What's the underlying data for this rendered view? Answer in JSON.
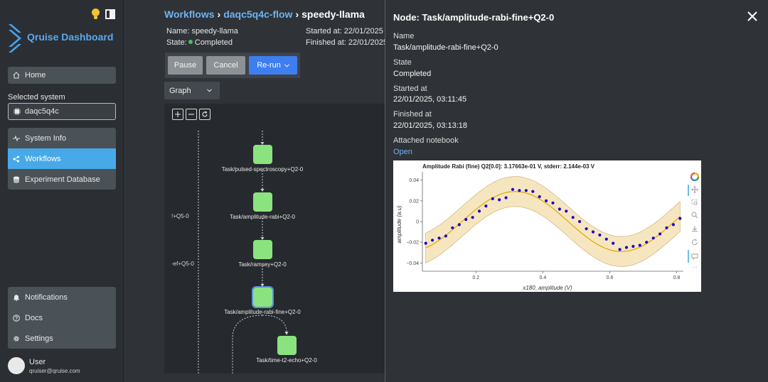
{
  "sidebar": {
    "logo_text": "Qruise Dashboard",
    "home_label": "Home",
    "selected_system_label": "Selected system",
    "selected_system_value": "daqc5q4c",
    "nav": [
      {
        "label": "System Info",
        "icon": "pulse-icon"
      },
      {
        "label": "Workflows",
        "icon": "share-nodes-icon",
        "active": true
      },
      {
        "label": "Experiment Database",
        "icon": "database-icon"
      }
    ],
    "bottom_nav": [
      {
        "label": "Notifications",
        "icon": "bell-icon"
      },
      {
        "label": "Docs",
        "icon": "help-icon"
      },
      {
        "label": "Settings",
        "icon": "gear-icon"
      }
    ],
    "user_name": "User",
    "user_email": "qruiser@qruise.com"
  },
  "main": {
    "breadcrumbs": {
      "root": "Workflows",
      "flow": "daqc5q4c-flow",
      "current": "speedy-llama"
    },
    "name_line": "Name: speedy-llama",
    "state_prefix": "State:",
    "state_value": "Completed",
    "started_line": "Started at: 22/01/2025",
    "finished_line": "Finished at: 22/01/2025",
    "pause_label": "Pause",
    "cancel_label": "Cancel",
    "rerun_label": "Re-run",
    "view_select": "Graph",
    "graph": {
      "nodes": [
        {
          "label": "Task/pulsed-spectroscopy+Q2-0"
        },
        {
          "label": "Task/amplitude-rabi+Q2-0"
        },
        {
          "label": "Task/ramsey+Q2-0"
        },
        {
          "label": "Task/amplitude-rabi-fine+Q2-0",
          "selected": true
        },
        {
          "label": "Task/time-t2-echo+Q2-0"
        }
      ],
      "side_labels": [
        "!+Q5-0",
        "-ef+Q5-0"
      ]
    }
  },
  "panel": {
    "title": "Node: Task/amplitude-rabi-fine+Q2-0",
    "fields": [
      {
        "label": "Name",
        "value": "Task/amplitude-rabi-fine+Q2-0"
      },
      {
        "label": "State",
        "value": "Completed"
      },
      {
        "label": "Started at",
        "value": "22/01/2025, 03:11:45"
      },
      {
        "label": "Finished at",
        "value": "22/01/2025, 03:13:18"
      }
    ],
    "notebook_label": "Attached notebook",
    "notebook_link": "Open"
  },
  "chart_data": {
    "type": "scatter",
    "title": "Amplitude Rabi (fine) Q2[0.0]: 3.17663e-01 V, stderr: 2.144e-03 V",
    "xlabel": "x180_amplitude (V)",
    "ylabel": "amplitude (a.u)",
    "xlim": [
      0.04,
      0.82
    ],
    "ylim": [
      -0.048,
      0.048
    ],
    "xticks": [
      0.2,
      0.4,
      0.6,
      0.8
    ],
    "yticks": [
      0.04,
      0.02,
      0,
      -0.02,
      -0.04
    ],
    "ytick_labels": [
      "0.04",
      "0.02",
      "0",
      "−0.02",
      "−0.04"
    ],
    "points": {
      "x": [
        0.05,
        0.07,
        0.09,
        0.11,
        0.13,
        0.15,
        0.17,
        0.19,
        0.21,
        0.23,
        0.25,
        0.27,
        0.29,
        0.31,
        0.33,
        0.35,
        0.37,
        0.39,
        0.41,
        0.43,
        0.45,
        0.47,
        0.49,
        0.51,
        0.53,
        0.55,
        0.57,
        0.59,
        0.61,
        0.63,
        0.65,
        0.67,
        0.69,
        0.71,
        0.73,
        0.75,
        0.77,
        0.79,
        0.81
      ],
      "y": [
        -0.021,
        -0.018,
        -0.016,
        -0.014,
        -0.006,
        -0.003,
        0.002,
        0.004,
        0.01,
        0.015,
        0.022,
        0.021,
        0.023,
        0.031,
        0.03,
        0.03,
        0.029,
        0.024,
        0.02,
        0.018,
        0.012,
        0.01,
        0.004,
        0.0,
        -0.007,
        -0.01,
        -0.013,
        -0.017,
        -0.021,
        -0.027,
        -0.025,
        -0.024,
        -0.023,
        -0.02,
        -0.016,
        -0.012,
        -0.006,
        -0.003,
        0.003
      ],
      "color": "#1f00c9"
    },
    "fit": {
      "amplitude": 0.029,
      "period": 0.635,
      "phase_x": 0.317,
      "color": "#e0a800"
    },
    "band_halfwidth": 0.0145,
    "band_color": "#f6e6bf"
  }
}
